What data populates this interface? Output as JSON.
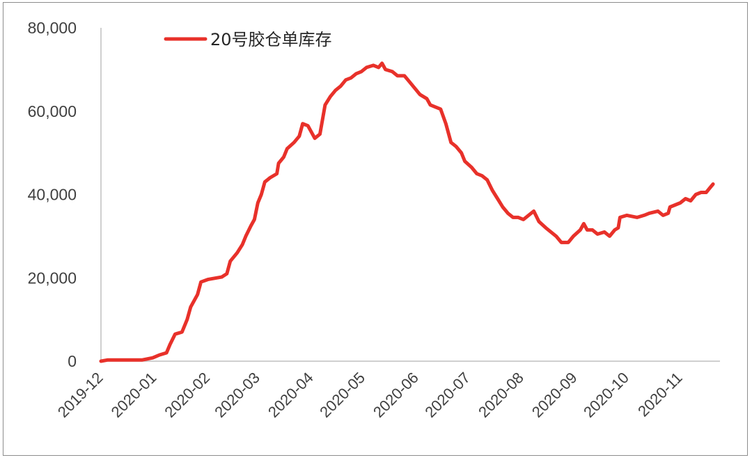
{
  "chart_data": {
    "type": "line",
    "title": "",
    "xlabel": "",
    "ylabel": "",
    "ylim": [
      0,
      80000
    ],
    "yticks": [
      "0",
      "20,000",
      "40,000",
      "60,000",
      "80,000"
    ],
    "xticks": [
      "2019-12",
      "2020-01",
      "2020-02",
      "2020-03",
      "2020-04",
      "2020-05",
      "2020-06",
      "2020-07",
      "2020-08",
      "2020-09",
      "2020-10",
      "2020-11"
    ],
    "grid": false,
    "legend_position": "top-left",
    "series": [
      {
        "name": "20号胶仓单库存",
        "color": "#e8312a",
        "points": [
          [
            "2019-12-01",
            0
          ],
          [
            "2019-12-05",
            300
          ],
          [
            "2019-12-15",
            300
          ],
          [
            "2019-12-25",
            300
          ],
          [
            "2019-12-31",
            800
          ],
          [
            "2020-01-04",
            1500
          ],
          [
            "2020-01-08",
            2000
          ],
          [
            "2020-01-10",
            4000
          ],
          [
            "2020-01-13",
            6500
          ],
          [
            "2020-01-17",
            7000
          ],
          [
            "2020-01-20",
            10000
          ],
          [
            "2020-01-22",
            13000
          ],
          [
            "2020-01-26",
            16000
          ],
          [
            "2020-01-28",
            19000
          ],
          [
            "2020-02-01",
            19600
          ],
          [
            "2020-02-09",
            20200
          ],
          [
            "2020-02-12",
            21000
          ],
          [
            "2020-02-14",
            24000
          ],
          [
            "2020-02-18",
            26000
          ],
          [
            "2020-02-21",
            28000
          ],
          [
            "2020-02-23",
            30000
          ],
          [
            "2020-02-26",
            32500
          ],
          [
            "2020-02-28",
            34000
          ],
          [
            "2020-03-01",
            38000
          ],
          [
            "2020-03-03",
            40000
          ],
          [
            "2020-03-05",
            43000
          ],
          [
            "2020-03-08",
            44000
          ],
          [
            "2020-03-12",
            45000
          ],
          [
            "2020-03-13",
            47500
          ],
          [
            "2020-03-16",
            49000
          ],
          [
            "2020-03-18",
            51000
          ],
          [
            "2020-03-22",
            52500
          ],
          [
            "2020-03-25",
            54000
          ],
          [
            "2020-03-27",
            57000
          ],
          [
            "2020-03-30",
            56500
          ],
          [
            "2020-04-03",
            53500
          ],
          [
            "2020-04-06",
            54500
          ],
          [
            "2020-04-09",
            61500
          ],
          [
            "2020-04-12",
            63500
          ],
          [
            "2020-04-15",
            65000
          ],
          [
            "2020-04-18",
            66000
          ],
          [
            "2020-04-21",
            67500
          ],
          [
            "2020-04-24",
            68000
          ],
          [
            "2020-04-27",
            69000
          ],
          [
            "2020-04-30",
            69500
          ],
          [
            "2020-05-03",
            70500
          ],
          [
            "2020-05-07",
            71000
          ],
          [
            "2020-05-10",
            70500
          ],
          [
            "2020-05-12",
            71500
          ],
          [
            "2020-05-14",
            70000
          ],
          [
            "2020-05-18",
            69500
          ],
          [
            "2020-05-21",
            68500
          ],
          [
            "2020-05-25",
            68500
          ],
          [
            "2020-05-28",
            67000
          ],
          [
            "2020-05-31",
            65500
          ],
          [
            "2020-06-03",
            64000
          ],
          [
            "2020-06-07",
            63000
          ],
          [
            "2020-06-09",
            61500
          ],
          [
            "2020-06-12",
            61000
          ],
          [
            "2020-06-15",
            60500
          ],
          [
            "2020-06-18",
            57000
          ],
          [
            "2020-06-21",
            52500
          ],
          [
            "2020-06-24",
            51500
          ],
          [
            "2020-06-27",
            50000
          ],
          [
            "2020-06-29",
            48000
          ],
          [
            "2020-07-03",
            46500
          ],
          [
            "2020-07-06",
            45000
          ],
          [
            "2020-07-09",
            44500
          ],
          [
            "2020-07-12",
            43500
          ],
          [
            "2020-07-15",
            41000
          ],
          [
            "2020-07-18",
            39000
          ],
          [
            "2020-07-21",
            37000
          ],
          [
            "2020-07-24",
            35500
          ],
          [
            "2020-07-27",
            34500
          ],
          [
            "2020-07-30",
            34500
          ],
          [
            "2020-08-02",
            34000
          ],
          [
            "2020-08-05",
            35000
          ],
          [
            "2020-08-08",
            36000
          ],
          [
            "2020-08-11",
            33500
          ],
          [
            "2020-08-15",
            32000
          ],
          [
            "2020-08-18",
            31000
          ],
          [
            "2020-08-21",
            30000
          ],
          [
            "2020-08-24",
            28500
          ],
          [
            "2020-08-28",
            28500
          ],
          [
            "2020-08-31",
            30000
          ],
          [
            "2020-09-04",
            31500
          ],
          [
            "2020-09-06",
            33000
          ],
          [
            "2020-09-08",
            31500
          ],
          [
            "2020-09-11",
            31500
          ],
          [
            "2020-09-14",
            30500
          ],
          [
            "2020-09-18",
            31000
          ],
          [
            "2020-09-21",
            30000
          ],
          [
            "2020-09-24",
            31500
          ],
          [
            "2020-09-26",
            32000
          ],
          [
            "2020-09-27",
            34500
          ],
          [
            "2020-10-01",
            35000
          ],
          [
            "2020-10-07",
            34500
          ],
          [
            "2020-10-11",
            35000
          ],
          [
            "2020-10-14",
            35500
          ],
          [
            "2020-10-19",
            36000
          ],
          [
            "2020-10-22",
            35000
          ],
          [
            "2020-10-25",
            35500
          ],
          [
            "2020-10-26",
            37000
          ],
          [
            "2020-10-29",
            37500
          ],
          [
            "2020-11-01",
            38000
          ],
          [
            "2020-11-04",
            39000
          ],
          [
            "2020-11-07",
            38500
          ],
          [
            "2020-11-10",
            40000
          ],
          [
            "2020-11-13",
            40500
          ],
          [
            "2020-11-16",
            40500
          ],
          [
            "2020-11-18",
            41500
          ],
          [
            "2020-11-20",
            42500
          ]
        ]
      }
    ]
  }
}
